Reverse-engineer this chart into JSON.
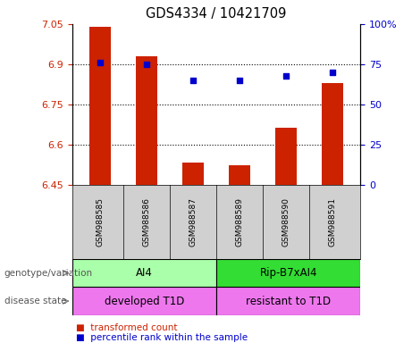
{
  "title": "GDS4334 / 10421709",
  "samples": [
    "GSM988585",
    "GSM988586",
    "GSM988587",
    "GSM988589",
    "GSM988590",
    "GSM988591"
  ],
  "bar_values": [
    7.04,
    6.93,
    6.535,
    6.525,
    6.665,
    6.83
  ],
  "bar_baseline": 6.45,
  "dot_values": [
    76,
    75,
    65,
    65,
    68,
    70
  ],
  "bar_color": "#cc2200",
  "dot_color": "#0000cc",
  "ylim_left": [
    6.45,
    7.05
  ],
  "ylim_right": [
    0,
    100
  ],
  "yticks_left": [
    6.45,
    6.6,
    6.75,
    6.9,
    7.05
  ],
  "yticks_right": [
    0,
    25,
    50,
    75,
    100
  ],
  "ytick_labels_left": [
    "6.45",
    "6.6",
    "6.75",
    "6.9",
    "7.05"
  ],
  "ytick_labels_right": [
    "0",
    "25",
    "50",
    "75",
    "100%"
  ],
  "hlines": [
    6.6,
    6.75,
    6.9
  ],
  "genotype_groups": [
    {
      "label": "AI4",
      "start": 0,
      "end": 3,
      "color": "#aaffaa"
    },
    {
      "label": "Rip-B7xAI4",
      "start": 3,
      "end": 6,
      "color": "#33dd33"
    }
  ],
  "disease_groups": [
    {
      "label": "developed T1D",
      "start": 0,
      "end": 3,
      "color": "#ee77ee"
    },
    {
      "label": "resistant to T1D",
      "start": 3,
      "end": 6,
      "color": "#ee77ee"
    }
  ],
  "legend_bar_label": "transformed count",
  "legend_dot_label": "percentile rank within the sample",
  "row_label_genotype": "genotype/variation",
  "row_label_disease": "disease state",
  "background_color": "#ffffff",
  "tick_label_color_left": "#cc2200",
  "tick_label_color_right": "#0000cc",
  "sample_bg_color": "#d0d0d0"
}
